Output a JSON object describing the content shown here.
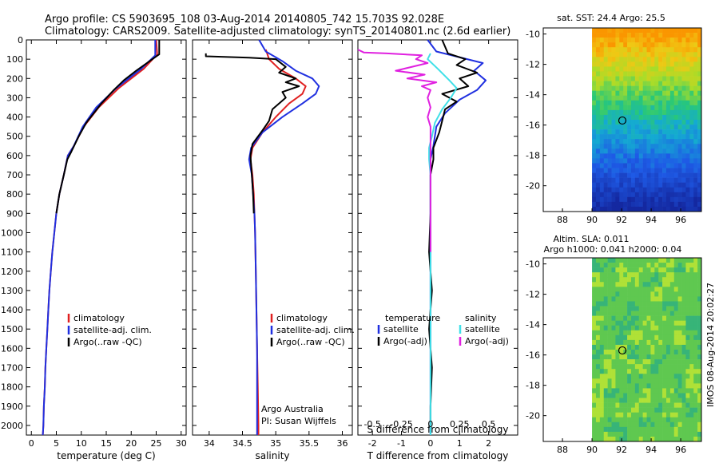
{
  "header": {
    "line1": "Argo profile: CS 5903695_108 03-Aug-2014 20140805_742 15.703S 92.028E",
    "line2": "Climatology: CARS2009. Satellite-adjusted climatology: synTS_20140801.nc (2.6d earlier)"
  },
  "side_label": "IMOS 08-Aug-2014 20:02:27",
  "colors": {
    "climatology": "#e02020",
    "satellite": "#2030e0",
    "argo": "#000000",
    "sat_s": "#40e0e8",
    "argo_s": "#e020e0"
  },
  "chart_data": [
    {
      "type": "line",
      "id": "temperature",
      "xlabel": "temperature (deg C)",
      "ylabel": "",
      "xlim": [
        -1,
        31
      ],
      "ylim": [
        2050,
        0
      ],
      "xticks": [
        0,
        5,
        10,
        15,
        20,
        25,
        30
      ],
      "yticks": [
        0,
        100,
        200,
        300,
        400,
        500,
        600,
        700,
        800,
        900,
        1000,
        1100,
        1200,
        1300,
        1400,
        1500,
        1600,
        1700,
        1800,
        1900,
        2000
      ],
      "legend": [
        "climatology",
        "satellite-adj. clim.",
        "Argo(..raw -QC)"
      ],
      "series": [
        {
          "name": "climatology",
          "color": "#e02020",
          "points": [
            [
              25,
              0
            ],
            [
              25.2,
              75
            ],
            [
              22.5,
              150
            ],
            [
              17.5,
              250
            ],
            [
              13.5,
              350
            ],
            [
              10.5,
              450
            ],
            [
              8.5,
              550
            ],
            [
              7.3,
              600
            ],
            [
              6.5,
              700
            ],
            [
              5.6,
              800
            ],
            [
              5,
              900
            ],
            [
              4.6,
              1000
            ],
            [
              4.2,
              1100
            ],
            [
              3.9,
              1200
            ],
            [
              3.6,
              1300
            ],
            [
              3.4,
              1400
            ],
            [
              3.2,
              1500
            ],
            [
              3.0,
              1600
            ],
            [
              2.8,
              1700
            ],
            [
              2.7,
              1800
            ],
            [
              2.5,
              1900
            ],
            [
              2.4,
              2000
            ],
            [
              2.3,
              2050
            ]
          ]
        },
        {
          "name": "satellite-adj. clim.",
          "color": "#2030e0",
          "points": [
            [
              24.8,
              0
            ],
            [
              24.8,
              80
            ],
            [
              22,
              150
            ],
            [
              17,
              250
            ],
            [
              13,
              350
            ],
            [
              10.3,
              450
            ],
            [
              8.5,
              550
            ],
            [
              7.3,
              600
            ],
            [
              6.5,
              700
            ],
            [
              5.6,
              800
            ],
            [
              5,
              900
            ],
            [
              4.6,
              1000
            ],
            [
              4.2,
              1100
            ],
            [
              3.9,
              1200
            ],
            [
              3.6,
              1300
            ],
            [
              3.4,
              1400
            ],
            [
              3.2,
              1500
            ],
            [
              3.0,
              1600
            ],
            [
              2.8,
              1700
            ],
            [
              2.7,
              1800
            ],
            [
              2.5,
              1900
            ],
            [
              2.4,
              2000
            ],
            [
              2.3,
              2050
            ]
          ]
        },
        {
          "name": "Argo(..raw -QC)",
          "color": "#000000",
          "points": [
            [
              25.6,
              0
            ],
            [
              25.6,
              75
            ],
            [
              24.5,
              95
            ],
            [
              21,
              160
            ],
            [
              18.5,
              210
            ],
            [
              16.5,
              260
            ],
            [
              14,
              330
            ],
            [
              12.5,
              380
            ],
            [
              11,
              430
            ],
            [
              9.5,
              500
            ],
            [
              8,
              580
            ],
            [
              7.2,
              620
            ],
            [
              6.5,
              700
            ],
            [
              5.6,
              800
            ],
            [
              5.0,
              900
            ]
          ]
        }
      ]
    },
    {
      "type": "line",
      "id": "salinity",
      "xlabel": "salinity",
      "ylabel": "",
      "xlim": [
        33.75,
        36.15
      ],
      "ylim": [
        2050,
        0
      ],
      "xticks": [
        34,
        34.5,
        35,
        35.5,
        36
      ],
      "legend": [
        "climatology",
        "satellite-adj. clim.",
        "Argo(..raw -QC)"
      ],
      "annotation": [
        "Argo Australia",
        "PI: Susan Wijffels"
      ],
      "series": [
        {
          "name": "climatology",
          "color": "#e02020",
          "points": [
            [
              34.85,
              50
            ],
            [
              34.9,
              100
            ],
            [
              35.05,
              150
            ],
            [
              35.3,
              200
            ],
            [
              35.45,
              240
            ],
            [
              35.4,
              280
            ],
            [
              35.2,
              330
            ],
            [
              35.0,
              400
            ],
            [
              34.8,
              480
            ],
            [
              34.65,
              560
            ],
            [
              34.62,
              620
            ],
            [
              34.65,
              700
            ],
            [
              34.67,
              800
            ],
            [
              34.68,
              900
            ],
            [
              34.69,
              1000
            ],
            [
              34.7,
              1200
            ],
            [
              34.71,
              1400
            ],
            [
              34.72,
              1600
            ],
            [
              34.73,
              1800
            ],
            [
              34.74,
              2000
            ],
            [
              34.74,
              2050
            ]
          ]
        },
        {
          "name": "satellite-adj. clim.",
          "color": "#2030e0",
          "points": [
            [
              34.75,
              0
            ],
            [
              34.85,
              60
            ],
            [
              35.1,
              110
            ],
            [
              35.3,
              160
            ],
            [
              35.55,
              200
            ],
            [
              35.65,
              240
            ],
            [
              35.6,
              280
            ],
            [
              35.4,
              330
            ],
            [
              35.1,
              400
            ],
            [
              34.8,
              480
            ],
            [
              34.63,
              560
            ],
            [
              34.6,
              620
            ],
            [
              34.64,
              700
            ],
            [
              34.66,
              800
            ],
            [
              34.68,
              900
            ],
            [
              34.69,
              1000
            ],
            [
              34.7,
              1200
            ],
            [
              34.71,
              1400
            ],
            [
              34.72,
              1600
            ],
            [
              34.72,
              1800
            ],
            [
              34.72,
              2000
            ],
            [
              34.72,
              2050
            ]
          ]
        },
        {
          "name": "Argo(..raw -QC)",
          "color": "#000000",
          "points": [
            [
              33.95,
              70
            ],
            [
              33.95,
              85
            ],
            [
              34.6,
              92
            ],
            [
              35.0,
              100
            ],
            [
              35.15,
              140
            ],
            [
              35.05,
              170
            ],
            [
              35.3,
              200
            ],
            [
              35.15,
              220
            ],
            [
              35.35,
              240
            ],
            [
              35.1,
              270
            ],
            [
              35.15,
              300
            ],
            [
              34.95,
              360
            ],
            [
              34.9,
              420
            ],
            [
              34.8,
              470
            ],
            [
              34.65,
              540
            ],
            [
              34.62,
              600
            ],
            [
              34.64,
              700
            ],
            [
              34.66,
              800
            ],
            [
              34.67,
              900
            ]
          ]
        }
      ]
    },
    {
      "type": "line",
      "id": "difference",
      "xlabel": "T difference from climatology",
      "xlabel_top": "S difference from climatology",
      "xlim": [
        -2.5,
        3
      ],
      "ylim": [
        2050,
        0
      ],
      "xticks": [
        -2,
        -1,
        0,
        1,
        2
      ],
      "xticks_s_labels": [
        "-0.5",
        "-0.25",
        "0",
        "0.25",
        "0.5"
      ],
      "legend_titles": [
        "temperature",
        "salinity"
      ],
      "legend": [
        "satellite",
        "Argo(-adj)",
        "satellite",
        "Argo(-adj)"
      ],
      "series": [
        {
          "name": "T satellite",
          "color": "#2030e0",
          "points": [
            [
              -0.1,
              0
            ],
            [
              0.2,
              60
            ],
            [
              1.8,
              120
            ],
            [
              1.5,
              160
            ],
            [
              1.9,
              210
            ],
            [
              1.6,
              260
            ],
            [
              1.0,
              310
            ],
            [
              0.5,
              380
            ],
            [
              0.2,
              450
            ],
            [
              0.1,
              550
            ],
            [
              0,
              620
            ],
            [
              0,
              700
            ],
            [
              0,
              800
            ],
            [
              0,
              1000
            ],
            [
              0,
              1200
            ],
            [
              0,
              1500
            ],
            [
              0,
              1800
            ],
            [
              0,
              2050
            ]
          ]
        },
        {
          "name": "T Argo(-adj)",
          "color": "#000000",
          "points": [
            [
              0.4,
              0
            ],
            [
              0.6,
              70
            ],
            [
              1.2,
              100
            ],
            [
              0.9,
              130
            ],
            [
              1.6,
              170
            ],
            [
              1.0,
              200
            ],
            [
              1.3,
              240
            ],
            [
              0.4,
              280
            ],
            [
              0.9,
              320
            ],
            [
              0.5,
              360
            ],
            [
              0.4,
              420
            ],
            [
              0.3,
              480
            ],
            [
              0.1,
              560
            ],
            [
              0.1,
              620
            ],
            [
              0,
              700
            ],
            [
              0,
              800
            ],
            [
              0,
              900
            ],
            [
              -0.05,
              1100
            ],
            [
              0.05,
              1300
            ],
            [
              -0.05,
              1500
            ],
            [
              0.05,
              1700
            ],
            [
              0,
              1900
            ],
            [
              0,
              2000
            ]
          ]
        },
        {
          "name": "S satellite",
          "color": "#40e0e8",
          "points": [
            [
              0,
              70
            ],
            [
              -0.1,
              100
            ],
            [
              0.25,
              150
            ],
            [
              0.65,
              210
            ],
            [
              0.9,
              250
            ],
            [
              0.7,
              300
            ],
            [
              0.4,
              360
            ],
            [
              0.15,
              430
            ],
            [
              0.05,
              500
            ],
            [
              -0.05,
              560
            ],
            [
              -0.05,
              620
            ],
            [
              0,
              700
            ],
            [
              0,
              800
            ],
            [
              0,
              1000
            ],
            [
              0,
              1200
            ],
            [
              0,
              1400
            ],
            [
              0,
              1600
            ],
            [
              0,
              1800
            ],
            [
              0,
              2050
            ]
          ]
        },
        {
          "name": "S Argo(-adj)",
          "color": "#e020e0",
          "points": [
            [
              -2.5,
              50
            ],
            [
              -2.3,
              65
            ],
            [
              -1.5,
              70
            ],
            [
              -0.3,
              80
            ],
            [
              -0.5,
              100
            ],
            [
              -0.1,
              120
            ],
            [
              -1.2,
              160
            ],
            [
              -0.2,
              180
            ],
            [
              -0.8,
              200
            ],
            [
              0.2,
              220
            ],
            [
              -0.3,
              240
            ],
            [
              0,
              260
            ],
            [
              -0.1,
              300
            ],
            [
              0,
              350
            ],
            [
              -0.1,
              400
            ],
            [
              0,
              450
            ],
            [
              0,
              550
            ],
            [
              0,
              600
            ],
            [
              0,
              700
            ],
            [
              0,
              800
            ],
            [
              0,
              900
            ],
            [
              0,
              1000
            ],
            [
              0,
              1100
            ]
          ]
        }
      ]
    },
    {
      "type": "heatmap",
      "id": "sst-map",
      "title": "sat. SST: 24.4  Argo: 25.5",
      "xlim": [
        86.7,
        97.4
      ],
      "ylim": [
        -21.7,
        -9.6
      ],
      "xticks": [
        88,
        90,
        92,
        94,
        96
      ],
      "yticks": [
        -10,
        -12,
        -14,
        -16,
        -18,
        -20
      ],
      "xtick_labels": [
        "88",
        "90",
        "92",
        "94",
        "96"
      ],
      "ytick_labels": [
        "-10",
        "-12",
        "-14",
        "-16",
        "-18",
        "-20"
      ],
      "data_x_min": 90,
      "marker": [
        92.05,
        -15.7
      ],
      "grid": false
    },
    {
      "type": "heatmap",
      "id": "sla-map",
      "title": "Altim. SLA: 0.011",
      "subtitle": "Argo h1000: 0.041 h2000: 0.04",
      "xlim": [
        86.7,
        97.4
      ],
      "ylim": [
        -21.7,
        -9.6
      ],
      "xticks": [
        88,
        90,
        92,
        94,
        96
      ],
      "yticks": [
        -10,
        -12,
        -14,
        -16,
        -18,
        -20
      ],
      "xtick_labels": [
        "88",
        "90",
        "92",
        "94",
        "96"
      ],
      "ytick_labels": [
        "-10",
        "-12",
        "-14",
        "-16",
        "-18",
        "-20"
      ],
      "data_x_min": 90,
      "marker": [
        92.05,
        -15.7
      ],
      "grid": false
    }
  ]
}
